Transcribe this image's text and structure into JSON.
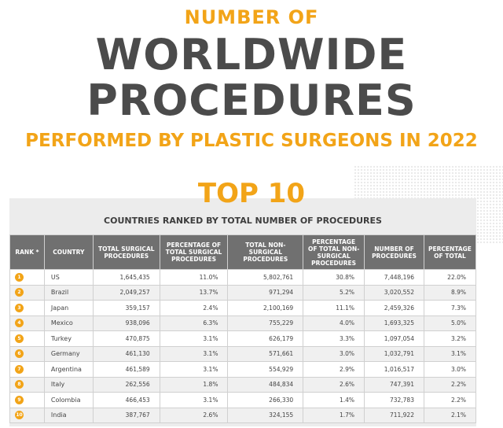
{
  "title": {
    "line1": "NUMBER OF",
    "line2": "WORLDWIDE",
    "line3": "PROCEDURES",
    "line4": "PERFORMED BY PLASTIC SURGEONS IN 2022"
  },
  "section": {
    "heading": "TOP 10",
    "subheading": "COUNTRIES RANKED BY TOTAL NUMBER OF PROCEDURES"
  },
  "colors": {
    "accent": "#f2a418",
    "header_bg": "#707070",
    "title": "#4b4b4b"
  },
  "table": {
    "headers": [
      "RANK *",
      "COUNTRY",
      "TOTAL SURGICAL PROCEDURES",
      "PERCENTAGE OF TOTAL SURGICAL PROCEDURES",
      "TOTAL NON-SURGICAL PROCEDURES",
      "PERCENTAGE OF TOTAL NON-SURGICAL PROCEDURES",
      "NUMBER OF PROCEDURES",
      "PERCENTAGE OF TOTAL"
    ],
    "rows": [
      [
        "1",
        "US",
        "1,645,435",
        "11.0%",
        "5,802,761",
        "30.8%",
        "7,448,196",
        "22.0%"
      ],
      [
        "2",
        "Brazil",
        "2,049,257",
        "13.7%",
        "971,294",
        "5.2%",
        "3,020,552",
        "8.9%"
      ],
      [
        "3",
        "Japan",
        "359,157",
        "2.4%",
        "2,100,169",
        "11.1%",
        "2,459,326",
        "7.3%"
      ],
      [
        "4",
        "Mexico",
        "938,096",
        "6.3%",
        "755,229",
        "4.0%",
        "1,693,325",
        "5.0%"
      ],
      [
        "5",
        "Turkey",
        "470,875",
        "3.1%",
        "626,179",
        "3.3%",
        "1,097,054",
        "3.2%"
      ],
      [
        "6",
        "Germany",
        "461,130",
        "3.1%",
        "571,661",
        "3.0%",
        "1,032,791",
        "3.1%"
      ],
      [
        "7",
        "Argentina",
        "461,589",
        "3.1%",
        "554,929",
        "2.9%",
        "1,016,517",
        "3.0%"
      ],
      [
        "8",
        "Italy",
        "262,556",
        "1.8%",
        "484,834",
        "2.6%",
        "747,391",
        "2.2%"
      ],
      [
        "9",
        "Colombia",
        "466,453",
        "3.1%",
        "266,330",
        "1.4%",
        "732,783",
        "2.2%"
      ],
      [
        "10",
        "India",
        "387,767",
        "2.6%",
        "324,155",
        "1.7%",
        "711,922",
        "2.1%"
      ]
    ]
  }
}
